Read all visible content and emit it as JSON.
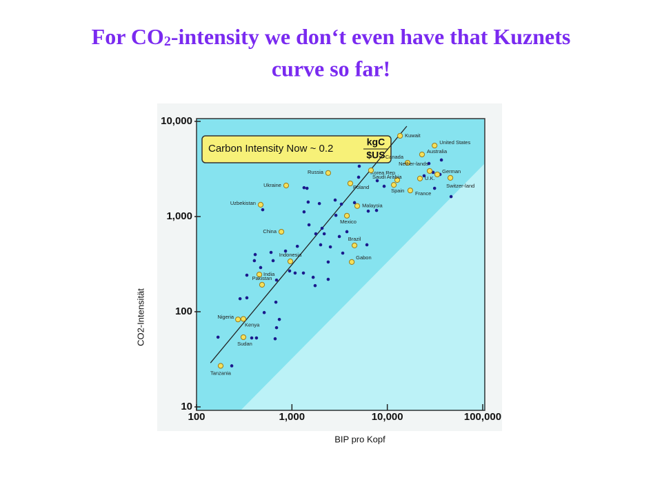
{
  "chart_data": {
    "type": "scatter",
    "title_parts": [
      "For CO",
      "2",
      "-intensity we don‘t even have that Kuznets",
      "curve so far!"
    ],
    "annotation_parts": [
      "Carbon Intensity Now ~ 0.2",
      "kgC",
      "$US"
    ],
    "xlabel": "BIP pro Kopf",
    "ylabel": "CO2-Intensität",
    "xlog": true,
    "ylog": true,
    "xlim": [
      100,
      100000
    ],
    "ylim": [
      10,
      10000
    ],
    "xticks": [
      100,
      {
        "value": 1000,
        "label": "1,000"
      },
      {
        "value": 10000,
        "label": "10,000"
      },
      {
        "value": 100000,
        "label": "100,000"
      }
    ],
    "yticks": [
      10,
      100,
      {
        "value": 1000,
        "label": "1,000"
      },
      {
        "value": 10000,
        "label": "10,000"
      }
    ],
    "points": {
      "color": "#1a1a8c",
      "x": [
        168,
        234,
        286,
        337,
        379,
        425,
        337,
        404,
        412,
        470,
        494,
        604,
        635,
        679,
        690,
        512,
        690,
        738,
        667,
        857,
        946,
        1080,
        1320,
        1140,
        1340,
        1480,
        1510,
        1780,
        1940,
        2180,
        2000,
        1670,
        2400,
        2890,
        2840,
        3300,
        3140,
        2530,
        3410,
        3770,
        4530,
        5000,
        5080,
        6310,
        7710,
        6110,
        2400,
        1750,
        2070,
        1440,
        1340,
        7840,
        9260,
        24300,
        27300,
        31300,
        35700,
        30200,
        36900,
        46600
      ],
      "y": [
        54,
        27,
        137,
        140,
        53,
        53,
        242,
        344,
        399,
        291,
        1180,
        420,
        344,
        126,
        68,
        98,
        215,
        83,
        52,
        434,
        268,
        255,
        255,
        487,
        1120,
        1420,
        818,
        659,
        1370,
        659,
        505,
        230,
        219,
        1030,
        1490,
        1350,
        617,
        480,
        413,
        693,
        1400,
        2590,
        3380,
        1140,
        1160,
        505,
        333,
        188,
        753,
        1980,
        2010,
        2380,
        2080,
        2680,
        3610,
        1980,
        2770,
        2910,
        3930,
        1620
      ]
    },
    "labeled_points": {
      "color": "#f5e05a",
      "labels": [
        "Kuwait",
        "United States",
        "Australia",
        "Canada",
        "Nether-lands",
        "Korea Rep",
        "German",
        "U.K.",
        "Spain",
        "France",
        "Switzer-land",
        "Russia",
        "Saudi Arabia",
        "Poland",
        "Ukraine",
        "Uzbekistan",
        "Malaysia",
        "Mexico",
        "China",
        "Brazil",
        "Gabon",
        "Indonesia",
        "India",
        "Pakistan",
        "Nigeria",
        "Kenya",
        "Sudan",
        "Tanzania"
      ],
      "x": [
        13600,
        31300,
        23100,
        16300,
        27800,
        12700,
        33400,
        22000,
        11700,
        17400,
        45800,
        2400,
        6740,
        4090,
        870,
        470,
        4840,
        3770,
        775,
        4530,
        4240,
        962,
        455,
        486,
        272,
        310,
        310,
        179
      ],
      "y": [
        7050,
        5570,
        4490,
        3670,
        3010,
        2420,
        2770,
        2510,
        2150,
        1880,
        2550,
        2870,
        3060,
        2230,
        2120,
        1330,
        1290,
        1020,
        692,
        497,
        333,
        338,
        246,
        192,
        83,
        84,
        54,
        27
      ]
    },
    "fit_line": {
      "x": [
        140,
        16000
      ],
      "y": [
        29,
        8900
      ]
    }
  }
}
